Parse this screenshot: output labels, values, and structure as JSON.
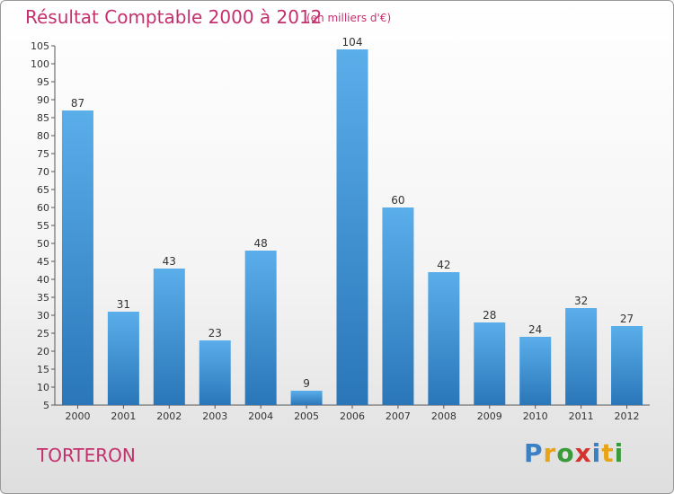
{
  "chart_data": {
    "type": "bar",
    "title": "Résultat Comptable 2000 à 2012",
    "subtitle": "(en milliers d'€)",
    "categories": [
      "2000",
      "2001",
      "2002",
      "2003",
      "2004",
      "2005",
      "2006",
      "2007",
      "2008",
      "2009",
      "2010",
      "2011",
      "2012"
    ],
    "values": [
      87,
      31,
      43,
      23,
      48,
      9,
      104,
      60,
      42,
      28,
      24,
      32,
      27
    ],
    "ylim": [
      5,
      105
    ],
    "yticks": [
      5,
      10,
      15,
      20,
      25,
      30,
      35,
      40,
      45,
      50,
      55,
      60,
      65,
      70,
      75,
      80,
      85,
      90,
      95,
      100,
      105
    ],
    "xlabel": "",
    "ylabel": "",
    "grid": false,
    "legend": "none"
  },
  "footer": {
    "town": "TORTERON",
    "logo": [
      "P",
      "r",
      "o",
      "x",
      "i",
      "t",
      "i"
    ],
    "logo_colors": [
      "#3b7fc4",
      "#e8a317",
      "#3a9b3a",
      "#d6322e",
      "#3b7fc4",
      "#e8a317",
      "#3a9b3a"
    ]
  },
  "colors": {
    "bar_top": "#5aaeea",
    "bar_bottom": "#2a76b8",
    "accent": "#c4306d"
  }
}
